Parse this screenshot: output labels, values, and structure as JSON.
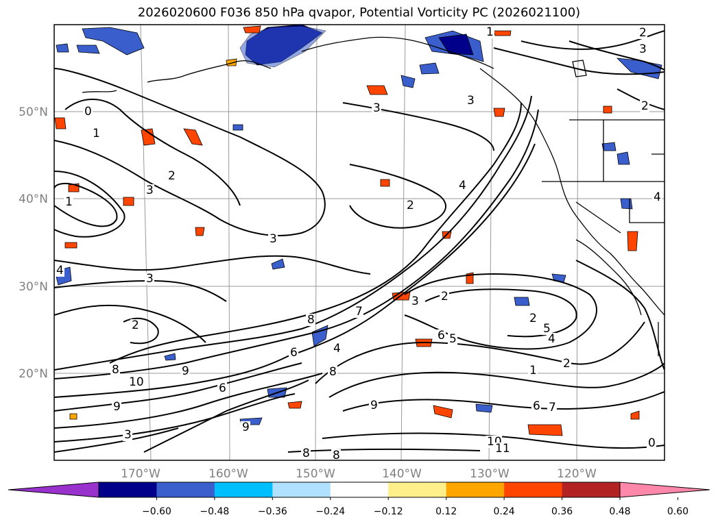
{
  "title": "2026020600 F036 850 hPa qvapor, Potential Vorticity PC (2026021100)",
  "map": {
    "lat_labels": [
      "50°N",
      "40°N",
      "30°N",
      "20°N"
    ],
    "lon_labels": [
      "170°W",
      "160°W",
      "150°W",
      "140°W",
      "130°W",
      "120°W"
    ],
    "contour_labels": [
      "0",
      "1",
      "2",
      "3",
      "2",
      "3",
      "3",
      "1",
      "4",
      "3",
      "2",
      "3",
      "4",
      "2",
      "7",
      "8",
      "3",
      "5",
      "6",
      "2",
      "5",
      "4",
      "1",
      "2",
      "6",
      "8",
      "9",
      "10",
      "9",
      "3",
      "9",
      "9",
      "8",
      "8",
      "10",
      "11",
      "4",
      "7",
      "6",
      "8",
      "6",
      "1",
      "0",
      "2",
      "3",
      "2",
      "4"
    ]
  },
  "colorbar": {
    "ticks": [
      "−0.60",
      "−0.48",
      "−0.36",
      "−0.24",
      "−0.12",
      "0.12",
      "0.24",
      "0.36",
      "0.48",
      "0.60"
    ],
    "colors": [
      "#9932cc",
      "#00008b",
      "#3a5fcd",
      "#00bfff",
      "#b0e2ff",
      "#ffffff",
      "#fff08c",
      "#ffa500",
      "#ff4500",
      "#b22222",
      "#ff88aa"
    ]
  }
}
